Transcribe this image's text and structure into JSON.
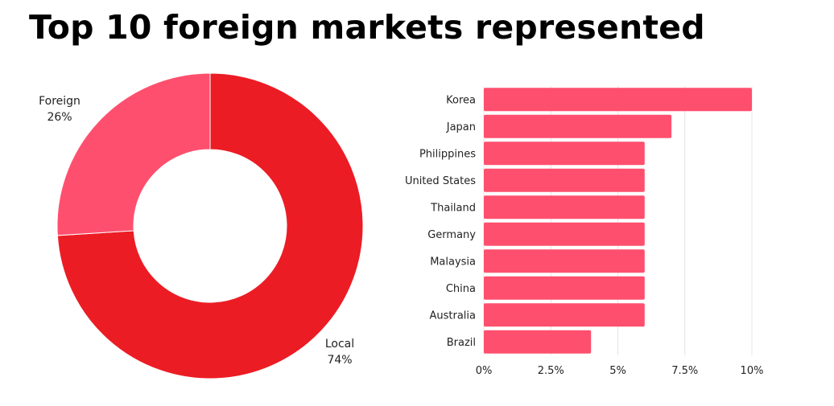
{
  "title": "Top 10 foreign markets represented",
  "colors": {
    "local": "#ec1c24",
    "foreign": "#ff4f6e",
    "bar": "#ff4f6e",
    "grid": "#e4e4e4",
    "text": "#222222"
  },
  "chart_data": [
    {
      "type": "pie",
      "variant": "donut",
      "slices": [
        {
          "label": "Local",
          "value_label": "74%",
          "value": 74
        },
        {
          "label": "Foreign",
          "value_label": "26%",
          "value": 26
        }
      ]
    },
    {
      "type": "bar",
      "orientation": "horizontal",
      "categories": [
        "Korea",
        "Japan",
        "Philippines",
        "United States",
        "Thailand",
        "Germany",
        "Malaysia",
        "China",
        "Australia",
        "Brazil"
      ],
      "values": [
        10,
        7,
        6,
        6,
        6,
        6,
        6,
        6,
        6,
        4
      ],
      "xlim": [
        0,
        10
      ],
      "xticks": [
        0,
        2.5,
        5,
        7.5,
        10
      ],
      "xtick_labels": [
        "0%",
        "2.5%",
        "5%",
        "7.5%",
        "10%"
      ],
      "grid": true
    }
  ]
}
